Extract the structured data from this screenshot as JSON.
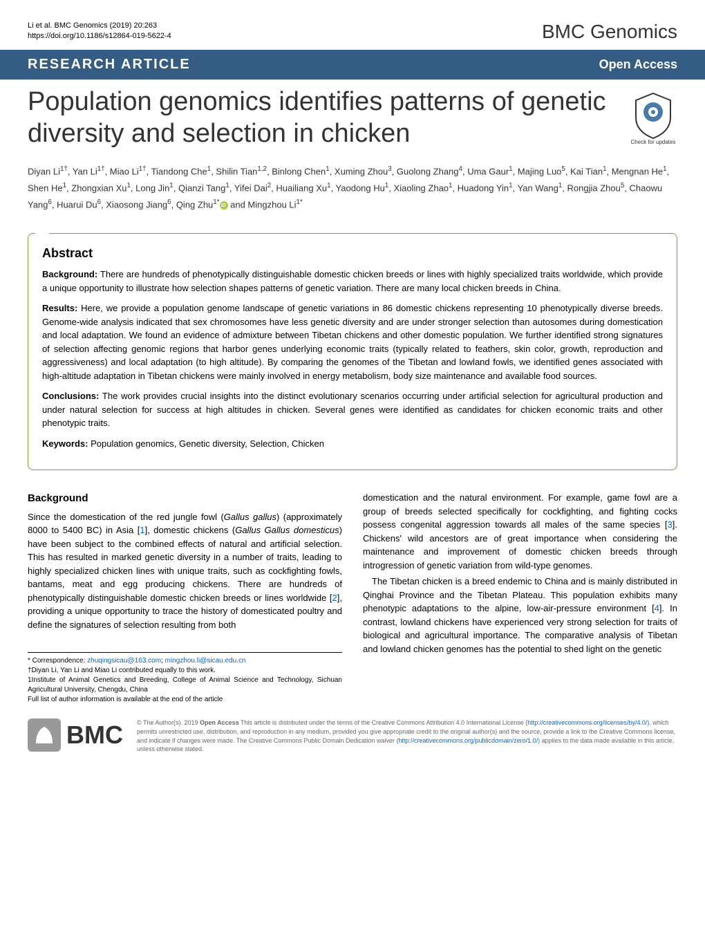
{
  "header": {
    "citation_line1": "Li et al. BMC Genomics          (2019) 20:263",
    "citation_line2": "https://doi.org/10.1186/s12864-019-5622-4",
    "journal_name": "BMC Genomics"
  },
  "banner": {
    "article_type": "RESEARCH ARTICLE",
    "open_access": "Open Access"
  },
  "title": "Population genomics identifies patterns of genetic diversity and selection in chicken",
  "crossmark_label": "Check for updates",
  "authors_html": "Diyan Li<sup>1†</sup>, Yan Li<sup>1†</sup>, Miao Li<sup>1†</sup>, Tiandong Che<sup>1</sup>, Shilin Tian<sup>1,2</sup>, Binlong Chen<sup>1</sup>, Xuming Zhou<sup>3</sup>, Guolong Zhang<sup>4</sup>, Uma Gaur<sup>1</sup>, Majing Luo<sup>5</sup>, Kai Tian<sup>1</sup>, Mengnan He<sup>1</sup>, Shen He<sup>1</sup>, Zhongxian Xu<sup>1</sup>, Long Jin<sup>1</sup>, Qianzi Tang<sup>1</sup>, Yifei Dai<sup>2</sup>, Huailiang Xu<sup>1</sup>, Yaodong Hu<sup>1</sup>, Xiaoling Zhao<sup>1</sup>, Huadong Yin<sup>1</sup>, Yan Wang<sup>1</sup>, Rongjia Zhou<sup>5</sup>, Chaowu Yang<sup>6</sup>, Huarui Du<sup>6</sup>, Xiaosong Jiang<sup>6</sup>, Qing Zhu<sup>1*</sup><span class=\"orcid-icon\" data-name=\"orcid-icon\" data-interactable=\"false\"></span> and Mingzhou Li<sup>1*</sup>",
  "abstract": {
    "heading": "Abstract",
    "background_label": "Background:",
    "background_text": " There are hundreds of phenotypically distinguishable domestic chicken breeds or lines with highly specialized traits worldwide, which provide a unique opportunity to illustrate how selection shapes patterns of genetic variation. There are many local chicken breeds in China.",
    "results_label": "Results:",
    "results_text": " Here, we provide a population genome landscape of genetic variations in 86 domestic chickens representing 10 phenotypically diverse breeds. Genome-wide analysis indicated that sex chromosomes have less genetic diversity and are under stronger selection than autosomes during domestication and local adaptation. We found an evidence of admixture between Tibetan chickens and other domestic population. We further identified strong signatures of selection affecting genomic regions that harbor genes underlying economic traits (typically related to feathers, skin color, growth, reproduction and aggressiveness) and local adaptation (to high altitude). By comparing the genomes of the Tibetan and lowland fowls, we identified genes associated with high-altitude adaptation in Tibetan chickens were mainly involved in energy metabolism, body size maintenance and available food sources.",
    "conclusions_label": "Conclusions:",
    "conclusions_text": " The work provides crucial insights into the distinct evolutionary scenarios occurring under artificial selection for agricultural production and under natural selection for success at high altitudes in chicken. Several genes were identified as candidates for chicken economic traits and other phenotypic traits.",
    "keywords_label": "Keywords:",
    "keywords_text": " Population genomics, Genetic diversity, Selection, Chicken"
  },
  "body": {
    "background_heading": "Background",
    "col1_para1_a": "Since the domestication of the red jungle fowl (",
    "col1_para1_b": "Gallus gallus",
    "col1_para1_c": ") (approximately 8000 to 5400 BC) in Asia [",
    "col1_para1_ref1": "1",
    "col1_para1_d": "], domestic chickens (",
    "col1_para1_e": "Gallus Gallus domesticus",
    "col1_para1_f": ") have been subject to the combined effects of natural and artificial selection. This has resulted in marked genetic diversity in a number of traits, leading to highly specialized chicken lines with unique traits, such as cockfighting fowls, bantams, meat and egg producing chickens. There are hundreds of phenotypically distinguishable domestic chicken breeds or lines worldwide [",
    "col1_para1_ref2": "2",
    "col1_para1_g": "], providing a unique opportunity to trace the history of domesticated poultry and define the signatures of selection resulting from both",
    "col2_para1_a": "domestication and the natural environment. For example, game fowl are a group of breeds selected specifically for cockfighting, and fighting cocks possess congenital aggression towards all males of the same species [",
    "col2_para1_ref3": "3",
    "col2_para1_b": "]. Chickens' wild ancestors are of great importance when considering the maintenance and improvement of domestic chicken breeds through introgression of genetic variation from wild-type genomes.",
    "col2_para2_a": "The Tibetan chicken is a breed endemic to China and is mainly distributed in Qinghai Province and the Tibetan Plateau. This population exhibits many phenotypic adaptations to the alpine, low-air-pressure environment [",
    "col2_para2_ref4": "4",
    "col2_para2_b": "]. In contrast, lowland chickens have experienced very strong selection for traits of biological and agricultural importance. The comparative analysis of Tibetan and lowland chicken genomes has the potential to shed light on the genetic"
  },
  "correspondence": {
    "label": "* Correspondence: ",
    "email1": "zhuqingsicau@163.com",
    "sep": "; ",
    "email2": "mingzhou.li@sicau.edu.cn",
    "note1": "†Diyan Li, Yan Li and Miao Li contributed equally to this work.",
    "note2": "1Institute of Animal Genetics and Breeding, College of Animal Science and Technology, Sichuan Agricultural University, Chengdu, China",
    "note3": "Full list of author information is available at the end of the article"
  },
  "license": {
    "bmc_text": "BMC",
    "text_a": "© The Author(s). 2019 ",
    "text_b": "Open Access",
    "text_c": " This article is distributed under the terms of the Creative Commons Attribution 4.0 International License (",
    "link1": "http://creativecommons.org/licenses/by/4.0/",
    "text_d": "), which permits unrestricted use, distribution, and reproduction in any medium, provided you give appropriate credit to the original author(s) and the source, provide a link to the Creative Commons license, and indicate if changes were made. The Creative Commons Public Domain Dedication waiver (",
    "link2": "http://creativecommons.org/publicdomain/zero/1.0/",
    "text_e": ") applies to the data made available in this article, unless otherwise stated."
  },
  "colors": {
    "banner_bg": "#355d84",
    "abstract_border": "#7a9e3d",
    "link": "#0066cc",
    "orcid": "#a6ce39"
  }
}
